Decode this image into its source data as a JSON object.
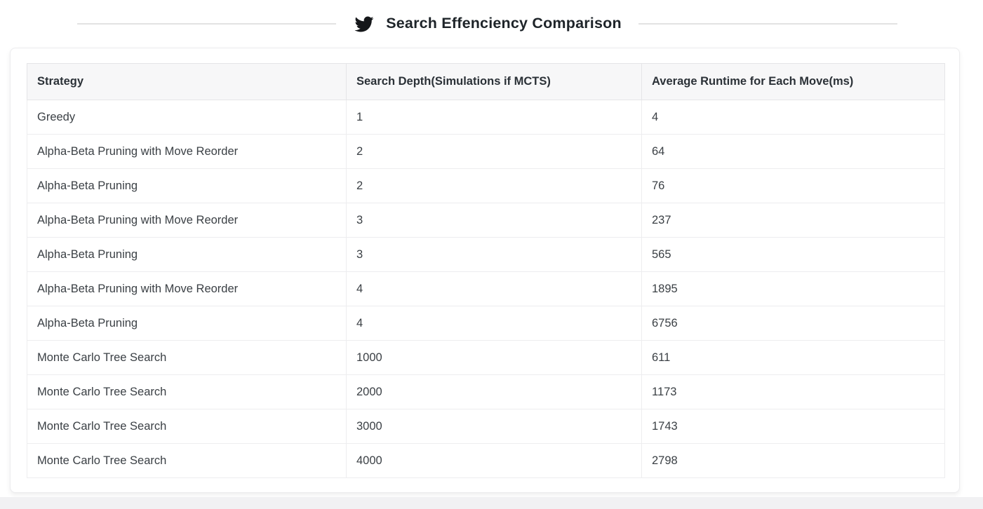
{
  "page": {
    "title": "Search Effenciency Comparison",
    "title_icon": "twitter-icon"
  },
  "colors": {
    "title_text": "#1e2429",
    "icon_fill": "#15171a",
    "divider_line": "#e2e2e2",
    "card_border": "#ececee",
    "table_border": "#e5e5e7",
    "header_background": "#f7f7f8",
    "header_text": "#2b3137",
    "cell_text": "#3b4045",
    "bottom_strip": "#f1f1f3"
  },
  "chart_data": {
    "type": "table",
    "title": "Search Effenciency Comparison",
    "columns": [
      "Strategy",
      "Search Depth(Simulations if MCTS)",
      "Average Runtime for Each Move(ms)"
    ],
    "rows": [
      [
        "Greedy",
        1,
        4
      ],
      [
        "Alpha-Beta Pruning with Move Reorder",
        2,
        64
      ],
      [
        "Alpha-Beta Pruning",
        2,
        76
      ],
      [
        "Alpha-Beta Pruning with Move Reorder",
        3,
        237
      ],
      [
        "Alpha-Beta Pruning",
        3,
        565
      ],
      [
        "Alpha-Beta Pruning with Move Reorder",
        4,
        1895
      ],
      [
        "Alpha-Beta Pruning",
        4,
        6756
      ],
      [
        "Monte Carlo Tree Search",
        1000,
        611
      ],
      [
        "Monte Carlo Tree Search",
        2000,
        1173
      ],
      [
        "Monte Carlo Tree Search",
        3000,
        1743
      ],
      [
        "Monte Carlo Tree Search",
        4000,
        2798
      ]
    ]
  }
}
